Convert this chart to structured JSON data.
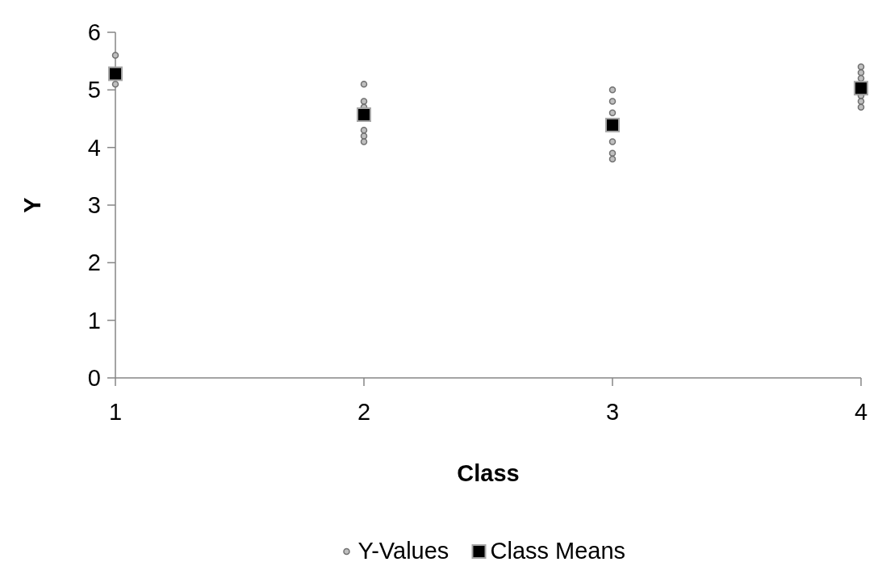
{
  "chart_data": {
    "type": "scatter",
    "xlabel": "Class",
    "ylabel": "Y",
    "xlim": [
      1,
      4
    ],
    "xticks": [
      1,
      2,
      3,
      4
    ],
    "ylim": [
      0,
      6
    ],
    "yticks": [
      0,
      1,
      2,
      3,
      4,
      5,
      6
    ],
    "grid": false,
    "legend": "bottom",
    "series": [
      {
        "name": "Y-Values",
        "color": "#bfbfbf",
        "marker": "circle",
        "x": [
          1,
          1,
          2,
          2,
          2,
          2,
          2,
          2,
          3,
          3,
          3,
          3,
          3,
          3,
          4,
          4,
          4,
          4,
          4,
          4
        ],
        "values": [
          5.6,
          5.1,
          5.1,
          4.8,
          4.7,
          4.3,
          4.2,
          4.1,
          5.0,
          4.8,
          4.6,
          4.1,
          3.9,
          3.8,
          5.4,
          5.3,
          5.2,
          4.9,
          4.8,
          4.7
        ]
      },
      {
        "name": "Class Means",
        "color": "#000000",
        "marker": "square",
        "x": [
          1,
          2,
          3,
          4
        ],
        "values": [
          5.28,
          4.57,
          4.39,
          5.03
        ]
      }
    ]
  }
}
